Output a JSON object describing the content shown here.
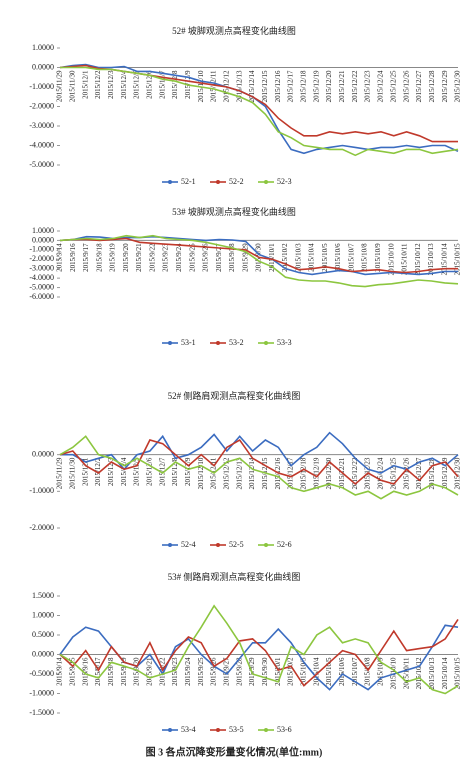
{
  "chart_data": [
    {
      "type": "line",
      "title": "52# 坡脚观测点高程变化曲线图",
      "categories": [
        "2015/11/29",
        "2015/11/30",
        "2015/12/1",
        "2015/12/2",
        "2015/12/3",
        "2015/12/4",
        "2015/12/5",
        "2015/12/6",
        "2015/12/7",
        "2015/12/8",
        "2015/12/9",
        "2015/12/10",
        "2015/12/11",
        "2015/12/12",
        "2015/12/13",
        "2015/12/14",
        "2015/12/15",
        "2015/12/16",
        "2015/12/17",
        "2015/12/18",
        "2015/12/19",
        "2015/12/20",
        "2015/12/21",
        "2015/12/22",
        "2015/12/23",
        "2015/12/24",
        "2015/12/25",
        "2015/12/26",
        "2015/12/27",
        "2015/12/28",
        "2015/12/29",
        "2015/12/30"
      ],
      "series": [
        {
          "name": "52-1",
          "color": "#3b6cc0",
          "values": [
            0,
            0.1,
            0.15,
            0,
            0,
            0.05,
            -0.2,
            -0.2,
            -0.3,
            -0.4,
            -0.5,
            -0.7,
            -0.8,
            -1.0,
            -1.2,
            -1.5,
            -2.0,
            -3.2,
            -4.2,
            -4.4,
            -4.2,
            -4.1,
            -4.0,
            -4.1,
            -4.2,
            -4.1,
            -4.1,
            -4.0,
            -4.1,
            -4.0,
            -4.0,
            -4.3
          ]
        },
        {
          "name": "52-2",
          "color": "#c0392b",
          "values": [
            0,
            0.05,
            0.1,
            -0.05,
            -0.1,
            -0.2,
            -0.3,
            -0.4,
            -0.5,
            -0.6,
            -0.7,
            -0.8,
            -0.9,
            -1.0,
            -1.2,
            -1.5,
            -1.9,
            -2.6,
            -3.1,
            -3.5,
            -3.5,
            -3.3,
            -3.4,
            -3.3,
            -3.4,
            -3.3,
            -3.5,
            -3.3,
            -3.5,
            -3.8,
            -3.8,
            -3.8
          ]
        },
        {
          "name": "52-3",
          "color": "#8cc63f",
          "values": [
            0,
            0,
            0,
            -0.1,
            -0.1,
            -0.2,
            -0.3,
            -0.4,
            -0.6,
            -0.7,
            -0.9,
            -1.0,
            -1.1,
            -1.3,
            -1.5,
            -1.8,
            -2.4,
            -3.3,
            -3.6,
            -4.0,
            -4.1,
            -4.2,
            -4.2,
            -4.5,
            -4.2,
            -4.3,
            -4.4,
            -4.2,
            -4.2,
            -4.4,
            -4.3,
            -4.2
          ]
        }
      ],
      "ylim": [
        -5,
        1
      ],
      "yticks": [
        {
          "value": -5,
          "label": "-5.0000"
        },
        {
          "value": -4,
          "label": "-4.0000"
        },
        {
          "value": -3,
          "label": "-3.0000"
        },
        {
          "value": -2,
          "label": "-2.0000"
        },
        {
          "value": -1,
          "label": "-1.0000"
        },
        {
          "value": 0,
          "label": "0.0000"
        },
        {
          "value": 1,
          "label": "1.0000"
        }
      ],
      "legend": "bottom"
    },
    {
      "type": "line",
      "title": "53# 坡脚观测点高程变化曲线图",
      "categories": [
        "2015/9/14",
        "2015/9/16",
        "2015/9/17",
        "2015/9/18",
        "2015/9/19",
        "2015/9/20",
        "2015/9/21",
        "2015/9/22",
        "2015/9/23",
        "2015/9/24",
        "2015/9/25",
        "2015/9/26",
        "2015/9/27",
        "2015/9/28",
        "2015/9/29",
        "2015/9/30",
        "2015/10/1",
        "2015/10/2",
        "2015/10/3",
        "2015/10/4",
        "2015/10/5",
        "2015/10/6",
        "2015/10/7",
        "2015/10/8",
        "2015/10/9",
        "2015/10/10",
        "2015/10/11",
        "2015/10/12",
        "2015/10/13",
        "2015/10/14",
        "2015/10/15"
      ],
      "series": [
        {
          "name": "53-1",
          "color": "#3b6cc0",
          "values": [
            0,
            0.1,
            0.4,
            0.35,
            0.2,
            0.3,
            0.3,
            0.4,
            0.3,
            0.2,
            0.1,
            0,
            0.1,
            0.05,
            -0.1,
            -1.5,
            -2.0,
            -3.0,
            -3.4,
            -3.6,
            -3.4,
            -3.2,
            -3.3,
            -3.6,
            -3.5,
            -3.4,
            -3.5,
            -3.6,
            -3.5,
            -3.3,
            -3.3
          ]
        },
        {
          "name": "53-2",
          "color": "#c0392b",
          "values": [
            0,
            0.1,
            0.1,
            0,
            0.1,
            0.2,
            -0.2,
            -0.3,
            -0.4,
            -0.5,
            -0.6,
            -0.7,
            -0.8,
            -0.9,
            -1.0,
            -1.8,
            -2.0,
            -2.5,
            -3.1,
            -3.0,
            -2.8,
            -3.0,
            -3.3,
            -3.2,
            -3.1,
            -3.3,
            -3.4,
            -3.3,
            -3.1,
            -3.0,
            -3.0
          ]
        },
        {
          "name": "53-3",
          "color": "#8cc63f",
          "values": [
            0,
            0.1,
            0.2,
            0.1,
            0.2,
            0.5,
            0.3,
            0.5,
            0.2,
            0.1,
            0,
            -0.2,
            -0.5,
            -0.8,
            -1.2,
            -2.2,
            -2.8,
            -3.9,
            -4.2,
            -4.3,
            -4.3,
            -4.5,
            -4.8,
            -4.9,
            -4.7,
            -4.6,
            -4.4,
            -4.2,
            -4.3,
            -4.5,
            -4.6
          ]
        }
      ],
      "ylim": [
        -6,
        1
      ],
      "yticks": [
        {
          "value": -6,
          "label": "-6.0000"
        },
        {
          "value": -5,
          "label": "-5.0000"
        },
        {
          "value": -4,
          "label": "-4.0000"
        },
        {
          "value": -3,
          "label": "-3.0000"
        },
        {
          "value": -2,
          "label": "-2.0000"
        },
        {
          "value": -1,
          "label": "-1.0000"
        },
        {
          "value": 0,
          "label": "0.0000"
        },
        {
          "value": 1,
          "label": "1.0000"
        }
      ],
      "legend": "bottom"
    },
    {
      "type": "line",
      "title": "52# 侧路肩观测点高程变化曲线图",
      "categories": [
        "2015/11/29",
        "2015/11/30",
        "2015/12/1",
        "2015/12/2",
        "2015/12/3",
        "2015/12/4",
        "2015/12/5",
        "2015/12/6",
        "2015/12/7",
        "2015/12/8",
        "2015/12/9",
        "2015/12/10",
        "2015/12/11",
        "2015/12/12",
        "2015/12/13",
        "2015/12/14",
        "2015/12/15",
        "2015/12/16",
        "2015/12/17",
        "2015/12/18",
        "2015/12/19",
        "2015/12/20",
        "2015/12/21",
        "2015/12/22",
        "2015/12/23",
        "2015/12/24",
        "2015/12/25",
        "2015/12/26",
        "2015/12/27",
        "2015/12/28",
        "2015/12/29",
        "2015/12/30"
      ],
      "series": [
        {
          "name": "52-4",
          "color": "#3b6cc0",
          "values": [
            0,
            0,
            -0.2,
            -0.1,
            0,
            -0.4,
            0,
            0.1,
            0.5,
            -0.1,
            0,
            0.2,
            0.55,
            0.1,
            0.5,
            0.1,
            0.4,
            0.2,
            -0.3,
            0,
            0.2,
            0.6,
            0.3,
            -0.1,
            -0.4,
            -0.5,
            -0.3,
            -0.4,
            -0.2,
            -0.1,
            -0.3,
            0
          ]
        },
        {
          "name": "52-5",
          "color": "#c0392b",
          "values": [
            0,
            0.1,
            -0.3,
            -0.5,
            -0.2,
            -0.4,
            -0.3,
            0.4,
            0.3,
            0,
            -0.3,
            0,
            -0.3,
            0.2,
            0.4,
            -0.1,
            -0.3,
            -0.5,
            -0.6,
            -0.4,
            -0.6,
            -0.2,
            -0.5,
            -0.8,
            -0.5,
            -0.7,
            -0.8,
            -0.4,
            -0.7,
            -0.3,
            -0.2,
            -0.6
          ]
        },
        {
          "name": "52-6",
          "color": "#8cc63f",
          "values": [
            0,
            0.2,
            0.5,
            0,
            -0.1,
            -0.3,
            -0.1,
            -0.3,
            -0.5,
            -0.2,
            -0.4,
            -0.3,
            -0.5,
            -0.2,
            -0.1,
            -0.4,
            -0.5,
            -0.6,
            -0.9,
            -1.0,
            -0.9,
            -0.8,
            -0.9,
            -1.1,
            -1.0,
            -1.2,
            -1.0,
            -1.1,
            -1.0,
            -0.8,
            -0.9,
            -1.1
          ]
        }
      ],
      "ylim": [
        -2,
        1
      ],
      "yticks": [
        {
          "value": -2,
          "label": "-2.0000"
        },
        {
          "value": -1,
          "label": "-1.0000"
        },
        {
          "value": 0,
          "label": "0.0000"
        }
      ],
      "legend": "bottom"
    },
    {
      "type": "line",
      "title": "53# 侧路肩观测点高程变化曲线图",
      "categories": [
        "2015/9/14",
        "2015/9/15",
        "2015/9/16",
        "2015/9/17",
        "2015/9/18",
        "2015/9/19",
        "2015/9/20",
        "2015/9/21",
        "2015/9/22",
        "2015/9/23",
        "2015/9/24",
        "2015/9/25",
        "2015/9/26",
        "2015/9/27",
        "2015/9/28",
        "2015/9/29",
        "2015/9/30",
        "2015/10/1",
        "2015/10/2",
        "2015/10/3",
        "2015/10/4",
        "2015/10/5",
        "2015/10/6",
        "2015/10/7",
        "2015/10/8",
        "2015/10/9",
        "2015/10/10",
        "2015/10/11",
        "2015/10/12",
        "2015/10/13",
        "2015/10/14",
        "2015/10/15"
      ],
      "series": [
        {
          "name": "53-4",
          "color": "#3b6cc0",
          "values": [
            0,
            0.45,
            0.7,
            0.6,
            0.2,
            -0.2,
            -0.3,
            0,
            -0.5,
            0.2,
            0.4,
            0,
            -0.3,
            -0.5,
            -0.1,
            0.3,
            0.3,
            0.65,
            0.3,
            -0.2,
            -0.6,
            -0.9,
            -0.5,
            -0.7,
            -0.9,
            -0.6,
            -0.5,
            -0.4,
            -0.3,
            0.2,
            0.75,
            0.7
          ]
        },
        {
          "name": "53-5",
          "color": "#c0392b",
          "values": [
            0,
            -0.3,
            0.1,
            -0.4,
            0.2,
            -0.2,
            -0.3,
            0.3,
            -0.4,
            0.1,
            0.45,
            0.3,
            -0.3,
            -0.1,
            0.35,
            0.4,
            0.1,
            -0.4,
            -0.3,
            -0.8,
            -0.5,
            -0.2,
            0.1,
            0,
            -0.4,
            0.1,
            0.6,
            0.1,
            0.15,
            0.2,
            0.4,
            0.9
          ]
        },
        {
          "name": "53-6",
          "color": "#8cc63f",
          "values": [
            0,
            -0.2,
            -0.5,
            -0.6,
            -0.2,
            -0.3,
            -0.4,
            -0.6,
            -0.5,
            -0.4,
            0.2,
            0.7,
            1.25,
            0.8,
            0.3,
            -0.5,
            -0.6,
            -0.7,
            0.2,
            0,
            0.5,
            0.7,
            0.3,
            0.4,
            0.3,
            -0.2,
            -0.4,
            -0.7,
            -0.6,
            -0.9,
            -1.0,
            -0.8
          ]
        }
      ],
      "ylim": [
        -1.5,
        1.5
      ],
      "yticks": [
        {
          "value": -1.5,
          "label": "-1.5000"
        },
        {
          "value": -1,
          "label": "-1.0000"
        },
        {
          "value": -0.5,
          "label": "-0.5000"
        },
        {
          "value": 0,
          "label": "0.0000"
        },
        {
          "value": 0.5,
          "label": "0.5000"
        },
        {
          "value": 1,
          "label": "1.0000"
        },
        {
          "value": 1.5,
          "label": "1.5000"
        }
      ],
      "legend": "bottom"
    }
  ],
  "caption": "图 3  各点沉降变形量变化情况(单位:mm)"
}
